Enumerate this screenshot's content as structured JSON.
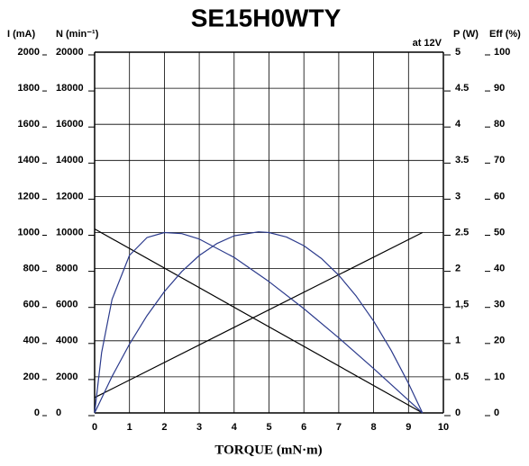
{
  "chart_data": {
    "type": "line",
    "title": "SE15H0WTY",
    "note": "at 12V",
    "x_label": "TORQUE (mN·m)",
    "xlim": [
      0,
      10
    ],
    "xticks": [
      0,
      1,
      2,
      3,
      4,
      5,
      6,
      7,
      8,
      9,
      10
    ],
    "grid": true,
    "axes": [
      {
        "label": "I (mA)",
        "lim": [
          0,
          2000
        ],
        "ticks": [
          0,
          200,
          400,
          600,
          800,
          1000,
          1200,
          1400,
          1600,
          1800,
          2000
        ]
      },
      {
        "label": "N (min⁻¹)",
        "lim": [
          0,
          20000
        ],
        "ticks": [
          0,
          2000,
          4000,
          6000,
          8000,
          10000,
          12000,
          14000,
          16000,
          18000,
          20000
        ]
      },
      {
        "label": "P (W)",
        "lim": [
          0,
          5
        ],
        "ticks": [
          0,
          0.5,
          1,
          {
            "value": 1.5,
            "label": "1,5"
          },
          2,
          2.5,
          3,
          3.5,
          4,
          4.5,
          5
        ]
      },
      {
        "label": "Eff (%)",
        "lim": [
          0,
          100
        ],
        "ticks": [
          0,
          10,
          20,
          30,
          40,
          50,
          60,
          70,
          80,
          90,
          100
        ]
      }
    ],
    "series": [
      {
        "axis": 0,
        "color": "#000000",
        "x": [
          0,
          9.4
        ],
        "values": [
          85,
          1000
        ]
      },
      {
        "axis": 1,
        "color": "#000000",
        "x": [
          0,
          9.4
        ],
        "values": [
          10200,
          0
        ]
      },
      {
        "axis": 2,
        "color": "#2b3a8c",
        "x": [
          0,
          0.5,
          1,
          1.5,
          2,
          2.5,
          3,
          3.5,
          4,
          4.7,
          5,
          5.5,
          6,
          6.5,
          7,
          7.5,
          8,
          8.5,
          9,
          9.4
        ],
        "values": [
          0,
          0.506,
          0.954,
          1.347,
          1.682,
          1.96,
          2.182,
          2.346,
          2.455,
          2.51,
          2.5,
          2.438,
          2.318,
          2.142,
          1.909,
          1.619,
          1.273,
          0.869,
          0.409,
          0
        ]
      },
      {
        "axis": 3,
        "color": "#2b3a8c",
        "x": [
          0,
          0.2,
          0.5,
          1,
          1.5,
          2,
          2.5,
          3,
          4,
          5,
          6,
          7,
          8,
          9,
          9.4
        ],
        "values": [
          0,
          16.7,
          31.5,
          43.7,
          48.6,
          50,
          49.7,
          48.2,
          43.1,
          36.4,
          28.9,
          20.8,
          12.3,
          3.5,
          0
        ]
      }
    ]
  }
}
